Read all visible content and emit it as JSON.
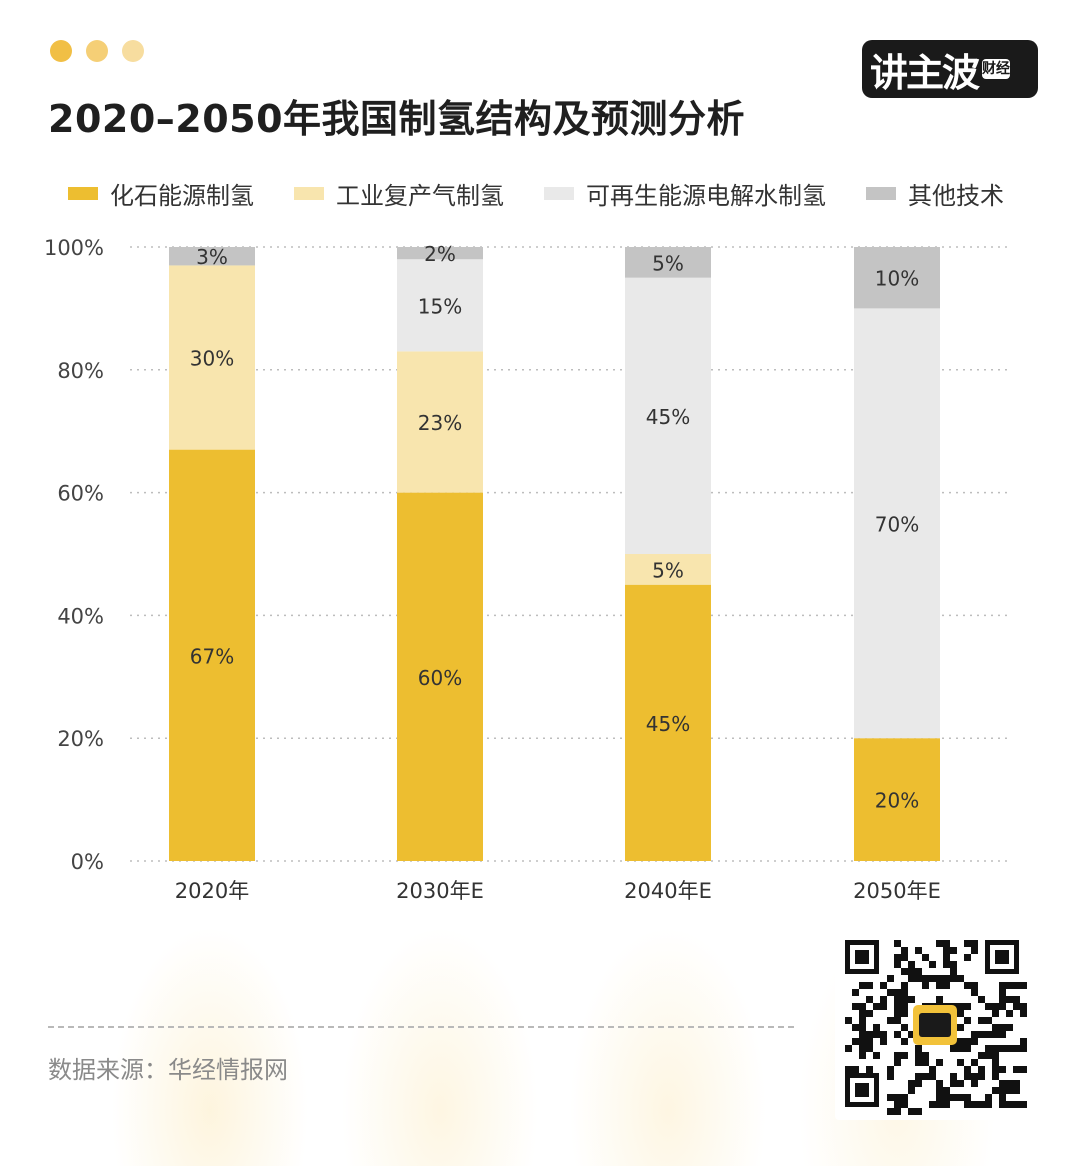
{
  "header": {
    "dot_colors": [
      "#f1bf45",
      "#f5cf76",
      "#f7dd9f"
    ],
    "title": "2020–2050年我国制氢结构及预测分析"
  },
  "logo": {
    "main": "讲主波",
    "sub": "财经"
  },
  "colors": {
    "fossil": "#edbe30",
    "industrial": "#f8e5ae",
    "renewable": "#e9e9e9",
    "other": "#c4c4c4"
  },
  "chart_data": {
    "type": "bar",
    "stacked": true,
    "title": "2020–2050年我国制氢结构及预测分析",
    "categories": [
      "2020年",
      "2030年E",
      "2040年E",
      "2050年E"
    ],
    "ylim": [
      0,
      100
    ],
    "yticks": [
      "0%",
      "20%",
      "40%",
      "60%",
      "80%",
      "100%"
    ],
    "grid": true,
    "legend_position": "top",
    "series": [
      {
        "name": "化石能源制氢",
        "color": "#edbe30",
        "values": [
          67,
          60,
          45,
          20
        ],
        "labels": [
          "67%",
          "60%",
          "45%",
          "20%"
        ]
      },
      {
        "name": "工业复产气制氢",
        "color": "#f8e5ae",
        "values": [
          30,
          23,
          5,
          0
        ],
        "labels": [
          "30%",
          "23%",
          "5%",
          ""
        ]
      },
      {
        "name": "可再生能源电解水制氢",
        "color": "#e9e9e9",
        "values": [
          0,
          15,
          45,
          70
        ],
        "labels": [
          "",
          "15%",
          "45%",
          "70%"
        ]
      },
      {
        "name": "其他技术",
        "color": "#c4c4c4",
        "values": [
          3,
          2,
          5,
          10
        ],
        "labels": [
          "3%",
          "2%",
          "5%",
          "10%"
        ]
      }
    ]
  },
  "footer": {
    "source": "数据来源：华经情报网"
  }
}
